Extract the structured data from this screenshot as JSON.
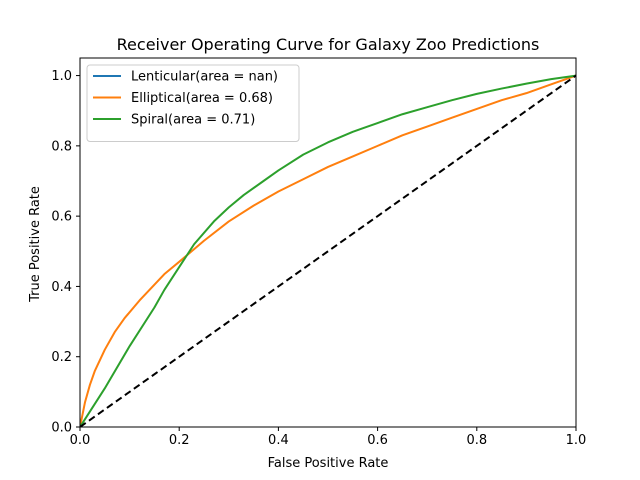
{
  "chart_data": {
    "type": "line",
    "title": "Receiver Operating Curve for Galaxy Zoo Predictions",
    "xlabel": "False Positive Rate",
    "ylabel": "True Positive Rate",
    "xlim": [
      0.0,
      1.0
    ],
    "ylim": [
      0.0,
      1.05
    ],
    "xticks": [
      0.0,
      0.2,
      0.4,
      0.6,
      0.8,
      1.0
    ],
    "xtick_labels": [
      "0.0",
      "0.2",
      "0.4",
      "0.6",
      "0.8",
      "1.0"
    ],
    "yticks": [
      0.0,
      0.2,
      0.4,
      0.6,
      0.8,
      1.0
    ],
    "ytick_labels": [
      "0.0",
      "0.2",
      "0.4",
      "0.6",
      "0.8",
      "1.0"
    ],
    "grid": false,
    "legend_position": "top-left",
    "series": [
      {
        "name": "Lenticular(area = nan)",
        "color": "#1f77b4",
        "x": [],
        "y": []
      },
      {
        "name": "Elliptical(area = 0.68)",
        "color": "#ff7f0e",
        "x": [
          0.0,
          0.01,
          0.02,
          0.03,
          0.05,
          0.07,
          0.09,
          0.12,
          0.15,
          0.17,
          0.2,
          0.25,
          0.3,
          0.35,
          0.4,
          0.45,
          0.5,
          0.55,
          0.6,
          0.65,
          0.7,
          0.75,
          0.8,
          0.85,
          0.9,
          0.95,
          1.0
        ],
        "y": [
          0.0,
          0.07,
          0.12,
          0.16,
          0.22,
          0.27,
          0.31,
          0.36,
          0.405,
          0.435,
          0.47,
          0.53,
          0.585,
          0.63,
          0.67,
          0.705,
          0.74,
          0.77,
          0.8,
          0.83,
          0.855,
          0.88,
          0.905,
          0.93,
          0.95,
          0.975,
          1.0
        ]
      },
      {
        "name": "Spiral(area = 0.71)",
        "color": "#2ca02c",
        "x": [
          0.0,
          0.05,
          0.1,
          0.15,
          0.17,
          0.2,
          0.23,
          0.27,
          0.3,
          0.33,
          0.37,
          0.4,
          0.45,
          0.5,
          0.55,
          0.6,
          0.65,
          0.7,
          0.75,
          0.8,
          0.85,
          0.9,
          0.95,
          1.0
        ],
        "y": [
          0.0,
          0.11,
          0.23,
          0.34,
          0.39,
          0.455,
          0.52,
          0.585,
          0.625,
          0.66,
          0.7,
          0.73,
          0.775,
          0.81,
          0.84,
          0.865,
          0.89,
          0.91,
          0.93,
          0.948,
          0.963,
          0.977,
          0.99,
          1.0
        ]
      }
    ],
    "reference_line": {
      "style": "dashed",
      "color": "#000000",
      "x": [
        0.0,
        1.0
      ],
      "y": [
        0.0,
        1.0
      ]
    }
  }
}
